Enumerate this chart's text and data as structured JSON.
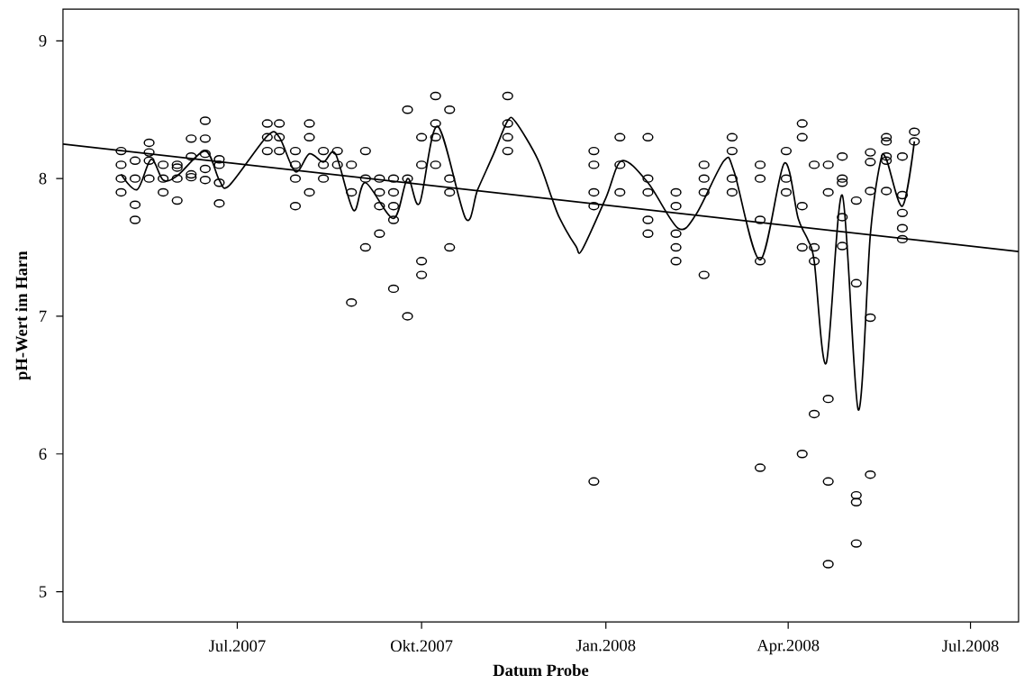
{
  "chart_data": {
    "type": "scatter",
    "xlabel": "Datum Probe",
    "ylabel": "pH-Wert im Harn",
    "xlim": [
      "2007-04-05",
      "2008-07-25"
    ],
    "ylim": [
      4.78,
      9.23
    ],
    "xticks": [
      {
        "value": "2007-07-01",
        "label": "Jul.2007"
      },
      {
        "value": "2007-10-01",
        "label": "Okt.2007"
      },
      {
        "value": "2008-01-01",
        "label": "Jan.2008"
      },
      {
        "value": "2008-04-01",
        "label": "Apr.2008"
      },
      {
        "value": "2008-07-01",
        "label": "Jul.2008"
      }
    ],
    "yticks": [
      5,
      6,
      7,
      8,
      9
    ],
    "marker": "circle",
    "series": [
      {
        "color": "#000000",
        "x": [
          "2007-05-04",
          "2007-05-04",
          "2007-05-04",
          "2007-05-04",
          "2007-05-11",
          "2007-05-11",
          "2007-05-11",
          "2007-05-11",
          "2007-05-18",
          "2007-05-18",
          "2007-05-18",
          "2007-05-18",
          "2007-05-25",
          "2007-05-25",
          "2007-05-25",
          "2007-06-01",
          "2007-06-01",
          "2007-06-01",
          "2007-06-01",
          "2007-06-08",
          "2007-06-08",
          "2007-06-08",
          "2007-06-08",
          "2007-06-15",
          "2007-06-15",
          "2007-06-15",
          "2007-06-15",
          "2007-06-15",
          "2007-06-22",
          "2007-06-22",
          "2007-06-22",
          "2007-06-22",
          "2007-07-16",
          "2007-07-16",
          "2007-07-16",
          "2007-07-22",
          "2007-07-22",
          "2007-07-22",
          "2007-07-30",
          "2007-07-30",
          "2007-07-30",
          "2007-07-30",
          "2007-08-06",
          "2007-08-06",
          "2007-08-06",
          "2007-08-13",
          "2007-08-13",
          "2007-08-13",
          "2007-08-20",
          "2007-08-20",
          "2007-08-27",
          "2007-08-27",
          "2007-08-27",
          "2007-09-03",
          "2007-09-03",
          "2007-09-03",
          "2007-09-10",
          "2007-09-10",
          "2007-09-10",
          "2007-09-10",
          "2007-09-17",
          "2007-09-17",
          "2007-09-17",
          "2007-09-17",
          "2007-09-17",
          "2007-09-24",
          "2007-09-24",
          "2007-09-24",
          "2007-10-01",
          "2007-10-01",
          "2007-10-01",
          "2007-10-01",
          "2007-10-08",
          "2007-10-08",
          "2007-10-08",
          "2007-10-08",
          "2007-10-15",
          "2007-10-15",
          "2007-10-15",
          "2007-10-15",
          "2007-11-13",
          "2007-11-13",
          "2007-11-13",
          "2007-11-13",
          "2007-12-26",
          "2007-12-26",
          "2007-12-26",
          "2007-12-26",
          "2007-12-26",
          "2008-01-08",
          "2008-01-08",
          "2008-01-08",
          "2008-01-22",
          "2008-01-22",
          "2008-01-22",
          "2008-01-22",
          "2008-01-22",
          "2008-02-05",
          "2008-02-05",
          "2008-02-05",
          "2008-02-05",
          "2008-02-05",
          "2008-02-19",
          "2008-02-19",
          "2008-02-19",
          "2008-02-19",
          "2008-03-04",
          "2008-03-04",
          "2008-03-04",
          "2008-03-04",
          "2008-03-18",
          "2008-03-18",
          "2008-03-18",
          "2008-03-18",
          "2008-03-18",
          "2008-03-31",
          "2008-03-31",
          "2008-03-31",
          "2008-04-08",
          "2008-04-08",
          "2008-04-08",
          "2008-04-08",
          "2008-04-08",
          "2008-04-14",
          "2008-04-14",
          "2008-04-14",
          "2008-04-14",
          "2008-04-21",
          "2008-04-21",
          "2008-04-21",
          "2008-04-21",
          "2008-04-21",
          "2008-04-28",
          "2008-04-28",
          "2008-04-28",
          "2008-04-28",
          "2008-04-28",
          "2008-05-05",
          "2008-05-05",
          "2008-05-05",
          "2008-05-05",
          "2008-05-05",
          "2008-05-12",
          "2008-05-12",
          "2008-05-12",
          "2008-05-12",
          "2008-05-12",
          "2008-05-20",
          "2008-05-20",
          "2008-05-20",
          "2008-05-20",
          "2008-05-20",
          "2008-05-28",
          "2008-05-28",
          "2008-05-28",
          "2008-05-28",
          "2008-05-28",
          "2008-06-03",
          "2008-06-03"
        ],
        "values": [
          8.2,
          8.1,
          8.0,
          7.9,
          8.13,
          8.0,
          7.81,
          7.7,
          8.26,
          8.19,
          8.13,
          8.0,
          8.1,
          8.0,
          7.9,
          8.1,
          8.08,
          8.0,
          7.84,
          8.29,
          8.16,
          8.03,
          8.01,
          8.42,
          8.29,
          8.18,
          8.07,
          7.99,
          8.14,
          8.1,
          7.97,
          7.82,
          8.4,
          8.3,
          8.2,
          8.4,
          8.3,
          8.2,
          8.2,
          8.1,
          8.0,
          7.8,
          8.4,
          8.3,
          7.9,
          8.2,
          8.1,
          8.0,
          8.2,
          8.1,
          8.1,
          7.9,
          7.1,
          8.2,
          8.0,
          7.5,
          8.0,
          7.9,
          7.8,
          7.6,
          8.0,
          7.9,
          7.8,
          7.7,
          7.2,
          8.5,
          8.0,
          7.0,
          8.3,
          8.1,
          7.4,
          7.3,
          8.6,
          8.4,
          8.3,
          8.1,
          8.5,
          8.0,
          7.9,
          7.5,
          8.6,
          8.4,
          8.3,
          8.2,
          8.2,
          8.1,
          7.9,
          7.8,
          5.8,
          8.3,
          8.1,
          7.9,
          8.3,
          8.0,
          7.9,
          7.7,
          7.6,
          7.9,
          7.8,
          7.6,
          7.5,
          7.4,
          8.1,
          8.0,
          7.9,
          7.3,
          8.3,
          8.2,
          8.0,
          7.9,
          8.1,
          8.0,
          7.7,
          7.4,
          5.9,
          8.2,
          8.0,
          7.9,
          8.4,
          8.3,
          7.8,
          7.5,
          6.0,
          8.1,
          7.5,
          7.4,
          6.29,
          8.1,
          7.9,
          6.4,
          5.8,
          5.2,
          8.16,
          8.0,
          7.97,
          7.72,
          7.51,
          7.84,
          7.24,
          5.7,
          5.65,
          5.35,
          8.19,
          8.12,
          7.91,
          6.99,
          5.85,
          8.3,
          8.27,
          8.16,
          8.13,
          7.91,
          8.16,
          7.88,
          7.75,
          7.64,
          7.56,
          8.34,
          8.27
        ]
      },
      {
        "type": "line",
        "marker": "none",
        "color": "#000000",
        "x": [
          "2007-05-04",
          "2007-05-12",
          "2007-05-19",
          "2007-05-25",
          "2007-06-01",
          "2007-06-15",
          "2007-06-22",
          "2007-06-27",
          "2007-07-16",
          "2007-07-22",
          "2007-07-30",
          "2007-08-06",
          "2007-08-13",
          "2007-08-19",
          "2007-08-28",
          "2007-09-03",
          "2007-09-17",
          "2007-09-24",
          "2007-09-30",
          "2007-10-09",
          "2007-10-23",
          "2007-10-29",
          "2007-11-06",
          "2007-11-13",
          "2007-11-17",
          "2007-11-28",
          "2007-12-05",
          "2007-12-09",
          "2007-12-17",
          "2007-12-20",
          "2008-01-01",
          "2008-01-09",
          "2008-01-22",
          "2008-02-06",
          "2008-02-15",
          "2008-02-29",
          "2008-03-05",
          "2008-03-18",
          "2008-03-30",
          "2008-04-06",
          "2008-04-11",
          "2008-04-14",
          "2008-04-20",
          "2008-04-28",
          "2008-05-06",
          "2008-05-12",
          "2008-05-17",
          "2008-05-20",
          "2008-05-28",
          "2008-06-03"
        ],
        "values": [
          8.03,
          7.92,
          8.14,
          7.99,
          8.02,
          8.2,
          7.99,
          7.95,
          8.31,
          8.3,
          8.05,
          8.18,
          8.12,
          8.18,
          7.77,
          7.97,
          7.71,
          8.0,
          7.82,
          8.38,
          7.71,
          7.92,
          8.18,
          8.42,
          8.41,
          8.14,
          7.86,
          7.71,
          7.51,
          7.48,
          7.86,
          8.13,
          7.97,
          7.64,
          7.74,
          8.13,
          8.05,
          7.41,
          8.11,
          7.71,
          7.55,
          7.4,
          6.66,
          7.88,
          6.32,
          7.59,
          8.12,
          8.14,
          7.8,
          8.27
        ]
      },
      {
        "type": "line",
        "marker": "none",
        "color": "#000000",
        "x": [
          "2007-04-05",
          "2008-07-25"
        ],
        "values": [
          8.25,
          7.47
        ]
      }
    ]
  }
}
